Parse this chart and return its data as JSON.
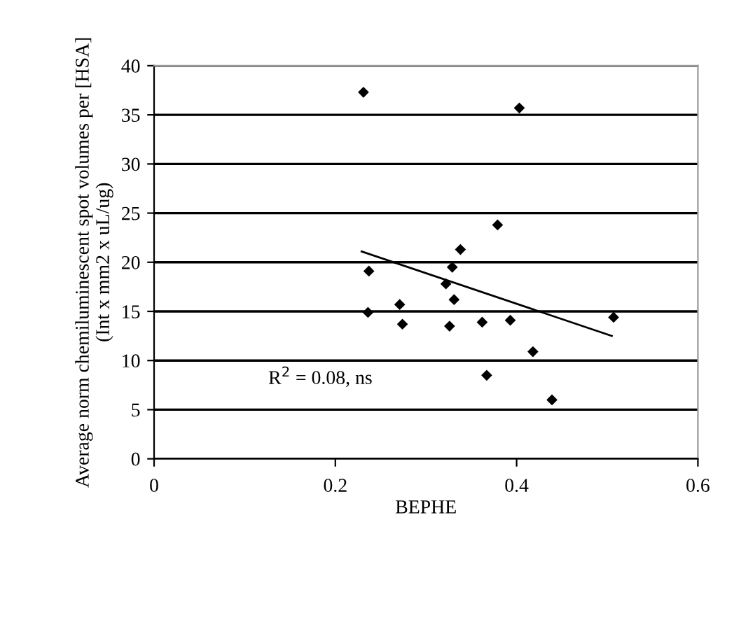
{
  "chart_data": {
    "type": "scatter",
    "xlabel": "BEPHE",
    "ylabel": "Average norm chemiluminescent spot volumes per [HSA] (Int x mm2 x uL/ug)",
    "annotations": [
      "R$^{2}$ = 0.08, ns"
    ],
    "series": [
      {
        "type": "scatter",
        "color": "#000000",
        "marker": "diamond",
        "x": [
          0.231,
          0.403,
          0.379,
          0.338,
          0.237,
          0.329,
          0.322,
          0.331,
          0.271,
          0.236,
          0.274,
          0.326,
          0.362,
          0.393,
          0.507,
          0.418,
          0.367,
          0.439
        ],
        "values": [
          37.3,
          35.7,
          23.8,
          21.3,
          19.1,
          19.5,
          17.8,
          16.2,
          15.7,
          14.9,
          13.7,
          13.5,
          13.9,
          14.1,
          14.4,
          10.9,
          8.5,
          6.0
        ]
      },
      {
        "type": "line",
        "color": "#000000",
        "marker": "none",
        "x": [
          0.229,
          0.505
        ],
        "values": [
          21.1,
          12.5
        ]
      }
    ],
    "xlim": [
      0,
      0.6
    ],
    "xticks": [
      0,
      0.2,
      0.4,
      0.6
    ],
    "ylim": [
      0,
      40
    ],
    "yticks": [
      0,
      5,
      10,
      15,
      20,
      25,
      30,
      35,
      40
    ],
    "grid": "y",
    "legend": false
  }
}
